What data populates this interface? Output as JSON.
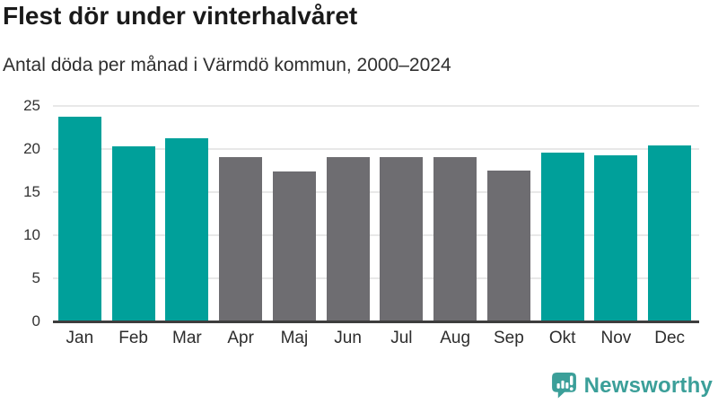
{
  "header": {
    "title": "Flest dör under vinterhalvåret",
    "subtitle": "Antal döda per månad i Värmdö kommun, 2000–2024"
  },
  "chart_data": {
    "type": "bar",
    "title": "Flest dör under vinterhalvåret",
    "subtitle": "Antal döda per månad i Värmdö kommun, 2000–2024",
    "categories": [
      "Jan",
      "Feb",
      "Mar",
      "Apr",
      "Maj",
      "Jun",
      "Jul",
      "Aug",
      "Sep",
      "Okt",
      "Nov",
      "Dec"
    ],
    "values": [
      23.8,
      20.3,
      21.3,
      19.1,
      17.4,
      19.1,
      19.1,
      19.1,
      17.5,
      19.6,
      19.3,
      20.4
    ],
    "bar_groups": [
      "winter",
      "winter",
      "winter",
      "summer",
      "summer",
      "summer",
      "summer",
      "summer",
      "summer",
      "winter",
      "winter",
      "winter"
    ],
    "group_colors": {
      "winter": "#00a09a",
      "summer": "#6e6d71"
    },
    "xlabel": "",
    "ylabel": "",
    "ylim": [
      0,
      25
    ],
    "yticks": [
      0,
      5,
      10,
      15,
      20,
      25
    ],
    "grid": true,
    "legend": false,
    "gridline_color": "#e8e8e8",
    "axis_line_color": "#3d3d3d"
  },
  "footer": {
    "brand": "Newsworthy",
    "brand_color": "#3b9f99",
    "logo_icon": "newsworthy-speech-bubble-chart-icon"
  }
}
